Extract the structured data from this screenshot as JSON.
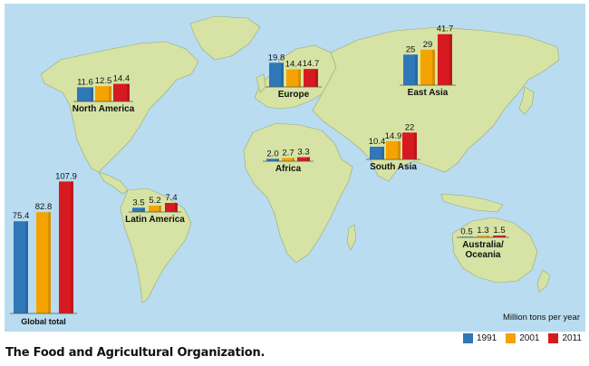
{
  "caption": "The Food and Agricultural Organization.",
  "units_label": "Million tons per year",
  "colors": {
    "ocean": "#b9dcf0",
    "land": "#d6e3a5",
    "s1991": "#2f78b8",
    "s2001": "#f5a300",
    "s2011": "#d71920"
  },
  "chart_data": {
    "type": "bar",
    "series": [
      {
        "name": "1991",
        "color": "#2f78b8"
      },
      {
        "name": "2001",
        "color": "#f5a300"
      },
      {
        "name": "2011",
        "color": "#d71920"
      }
    ],
    "legend_placement": "bottom-right",
    "unit": "Million tons per year",
    "groups": [
      {
        "name": "North America",
        "labels": [
          "11.6",
          "12.5",
          "14.4"
        ],
        "values": [
          11.6,
          12.5,
          14.4
        ]
      },
      {
        "name": "Europe",
        "labels": [
          "19.8",
          "14.4",
          "14.7"
        ],
        "values": [
          19.8,
          14.4,
          14.7
        ]
      },
      {
        "name": "East Asia",
        "labels": [
          "25",
          "29",
          "41.7"
        ],
        "values": [
          25,
          29,
          41.7
        ]
      },
      {
        "name": "Africa",
        "labels": [
          "2.0",
          "2.7",
          "3.3"
        ],
        "values": [
          2.0,
          2.7,
          3.3
        ]
      },
      {
        "name": "South Asia",
        "labels": [
          "10.4",
          "14.9",
          "22"
        ],
        "values": [
          10.4,
          14.9,
          22
        ]
      },
      {
        "name": "Latin America",
        "labels": [
          "3.5",
          "5.2",
          "7.4"
        ],
        "values": [
          3.5,
          5.2,
          7.4
        ]
      },
      {
        "name": "Australia/\nOceania",
        "labels": [
          "0.5",
          "1.3",
          "1.5"
        ],
        "values": [
          0.5,
          1.3,
          1.5
        ]
      },
      {
        "name": "Global total",
        "labels": [
          "75.4",
          "82.8",
          "107.9"
        ],
        "values": [
          75.4,
          82.8,
          107.9
        ]
      }
    ]
  }
}
